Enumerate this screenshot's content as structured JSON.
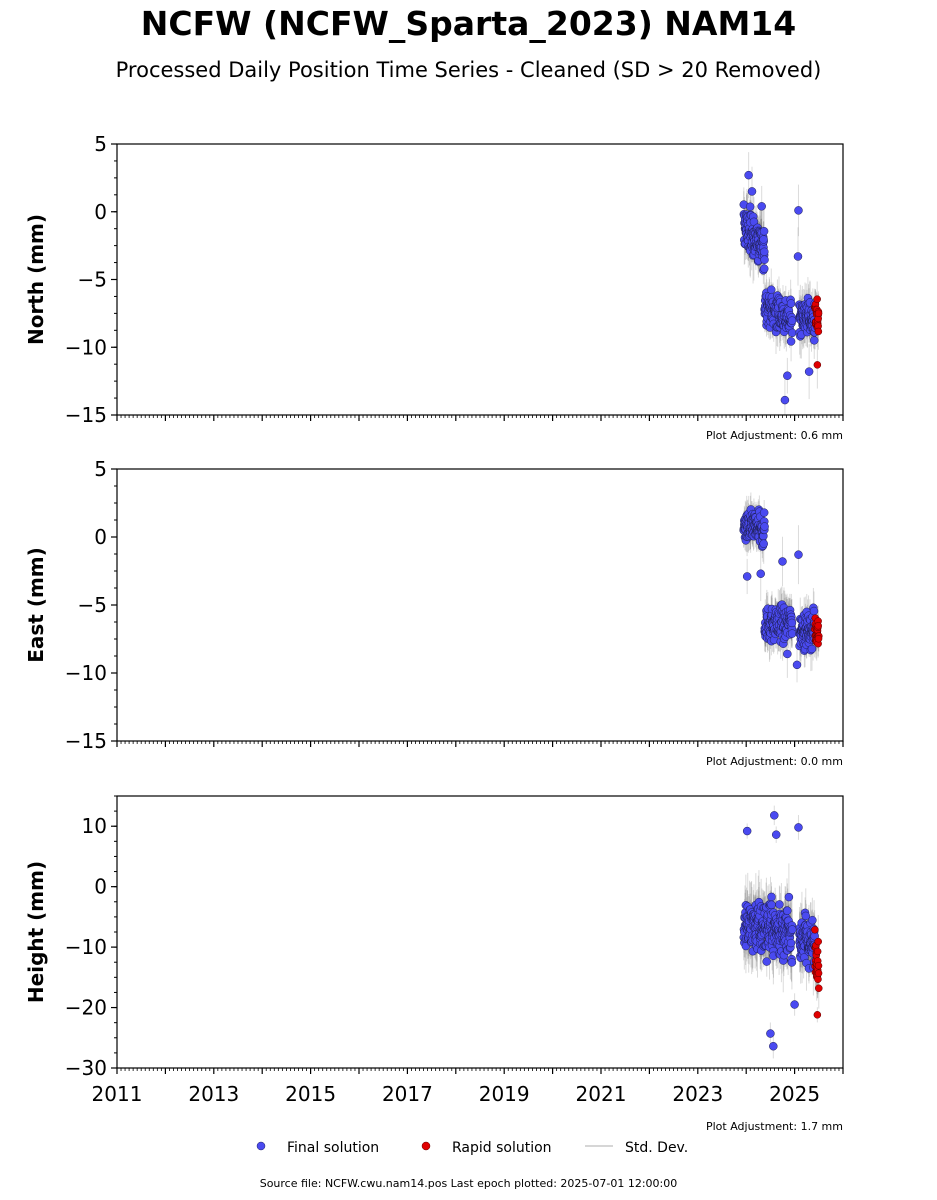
{
  "title": "NCFW (NCFW_Sparta_2023) NAM14",
  "subtitle": "Processed Daily Position Time Series - Cleaned (SD > 20 Removed)",
  "source_text": "Source file: NCFW.cwu.nam14.pos  Last epoch plotted: 2025-07-01 12:00:00",
  "legend": {
    "final": "Final solution",
    "rapid": "Rapid solution",
    "std": "Std. Dev."
  },
  "colors": {
    "final": "#4a4af0",
    "rapid": "#e00000",
    "std": "#a8a8a8"
  },
  "chart_data": [
    {
      "type": "scatter",
      "ylabel": "North (mm)",
      "ylim": [
        -15,
        5
      ],
      "yticks": [
        5,
        0,
        -5,
        -10,
        -15
      ],
      "xlim": [
        2011,
        2026
      ],
      "adjustment": "Plot Adjustment: 0.6 mm",
      "segments": [
        {
          "series": "final",
          "start": 2023.95,
          "end": 2024.38,
          "y0": -1.0,
          "y1": -2.8,
          "spread": 1.4,
          "n": 120
        },
        {
          "series": "final",
          "start": 2024.38,
          "end": 2024.95,
          "y0": -6.8,
          "y1": -8.2,
          "spread": 1.2,
          "n": 130
        },
        {
          "series": "final",
          "start": 2025.1,
          "end": 2025.42,
          "y0": -7.5,
          "y1": -8.0,
          "spread": 1.2,
          "n": 90
        },
        {
          "series": "rapid",
          "start": 2025.42,
          "end": 2025.5,
          "y0": -7.5,
          "y1": -8.0,
          "spread": 1.0,
          "n": 24
        }
      ],
      "outliers": [
        {
          "x": 2024.05,
          "y": 2.7
        },
        {
          "x": 2024.12,
          "y": 1.5
        },
        {
          "x": 2024.32,
          "y": 0.4
        },
        {
          "x": 2024.8,
          "y": -13.9
        },
        {
          "x": 2024.85,
          "y": -12.1
        },
        {
          "x": 2025.08,
          "y": 0.1
        },
        {
          "x": 2025.07,
          "y": -3.3
        },
        {
          "x": 2025.3,
          "y": -11.8
        },
        {
          "x": 2025.47,
          "y": -11.3,
          "series": "rapid"
        }
      ]
    },
    {
      "type": "scatter",
      "ylabel": "East (mm)",
      "ylim": [
        -15,
        5
      ],
      "yticks": [
        5,
        0,
        -5,
        -10,
        -15
      ],
      "xlim": [
        2011,
        2026
      ],
      "adjustment": "Plot Adjustment: 0.0 mm",
      "segments": [
        {
          "series": "final",
          "start": 2023.95,
          "end": 2024.38,
          "y0": 0.8,
          "y1": 0.4,
          "spread": 1.0,
          "n": 120
        },
        {
          "series": "final",
          "start": 2024.38,
          "end": 2024.95,
          "y0": -6.5,
          "y1": -6.2,
          "spread": 1.2,
          "n": 130
        },
        {
          "series": "final",
          "start": 2025.1,
          "end": 2025.42,
          "y0": -6.8,
          "y1": -6.8,
          "spread": 1.1,
          "n": 90
        },
        {
          "series": "rapid",
          "start": 2025.42,
          "end": 2025.5,
          "y0": -6.8,
          "y1": -7.0,
          "spread": 1.0,
          "n": 24
        }
      ],
      "outliers": [
        {
          "x": 2024.02,
          "y": -2.9
        },
        {
          "x": 2024.3,
          "y": -2.7
        },
        {
          "x": 2024.75,
          "y": -1.8
        },
        {
          "x": 2025.08,
          "y": -1.3
        },
        {
          "x": 2024.85,
          "y": -8.6
        },
        {
          "x": 2025.05,
          "y": -9.4
        }
      ]
    },
    {
      "type": "scatter",
      "ylabel": "Height (mm)",
      "ylim": [
        -30,
        15
      ],
      "yticks": [
        10,
        0,
        -10,
        -20,
        -30
      ],
      "xlim": [
        2011,
        2026
      ],
      "xticks": [
        2011,
        2013,
        2015,
        2017,
        2019,
        2021,
        2023,
        2025
      ],
      "adjustment": "Plot Adjustment: 1.7 mm",
      "segments": [
        {
          "series": "final",
          "start": 2023.95,
          "end": 2024.95,
          "y0": -6.0,
          "y1": -8.0,
          "spread": 3.8,
          "n": 260
        },
        {
          "series": "final",
          "start": 2025.1,
          "end": 2025.42,
          "y0": -8.0,
          "y1": -10.0,
          "spread": 3.5,
          "n": 90
        },
        {
          "series": "rapid",
          "start": 2025.42,
          "end": 2025.5,
          "y0": -10.0,
          "y1": -13.0,
          "spread": 3.2,
          "n": 24
        }
      ],
      "outliers": [
        {
          "x": 2024.02,
          "y": 9.2
        },
        {
          "x": 2024.58,
          "y": 11.8
        },
        {
          "x": 2024.62,
          "y": 8.6
        },
        {
          "x": 2025.08,
          "y": 9.8
        },
        {
          "x": 2024.5,
          "y": -24.3
        },
        {
          "x": 2024.56,
          "y": -26.4
        },
        {
          "x": 2025.0,
          "y": -19.5
        },
        {
          "x": 2025.47,
          "y": -21.2,
          "series": "rapid"
        }
      ]
    }
  ]
}
